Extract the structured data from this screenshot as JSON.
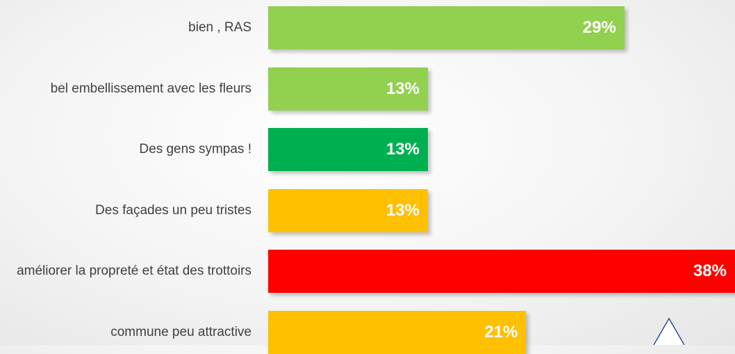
{
  "chart_data": {
    "type": "bar",
    "orientation": "horizontal",
    "categories": [
      "bien , RAS",
      "bel embellissement avec les fleurs",
      "Des gens sympas !",
      "Des façades un peu tristes",
      "améliorer la propreté et état des trottoirs",
      "commune peu attractive"
    ],
    "values": [
      29,
      13,
      13,
      13,
      38,
      21
    ],
    "value_labels": [
      "29%",
      "13%",
      "13%",
      "13%",
      "38%",
      "21%"
    ],
    "colors": [
      "#92d050",
      "#92d050",
      "#00b050",
      "#ffc000",
      "#ff0000",
      "#ffc000"
    ]
  }
}
